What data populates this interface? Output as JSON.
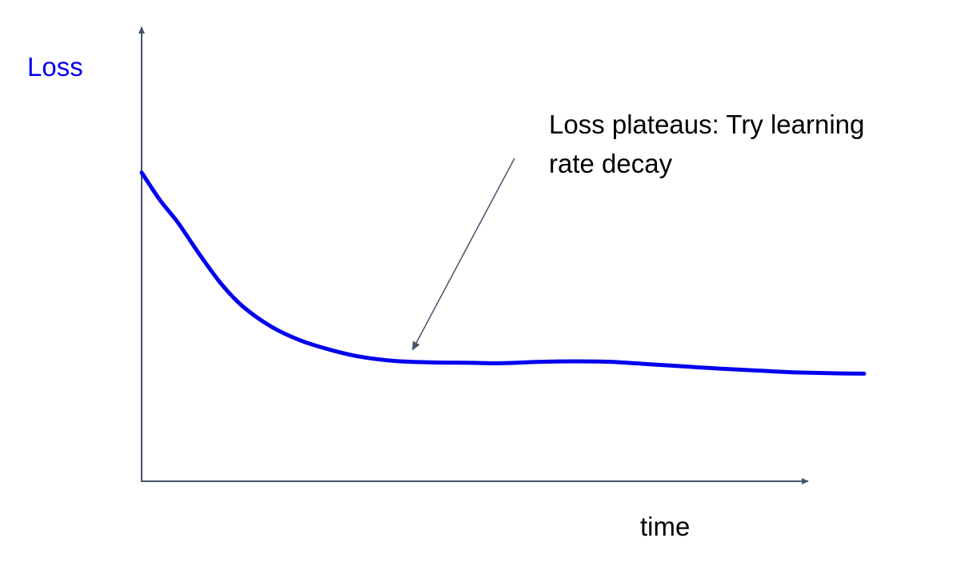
{
  "chart_data": {
    "type": "line",
    "title": "",
    "xlabel": "time",
    "ylabel": "Loss",
    "xlim": [
      0,
      100
    ],
    "ylim": [
      0,
      100
    ],
    "grid": false,
    "legend": "none",
    "series": [
      {
        "name": "loss",
        "color": "#0000ee",
        "x": [
          0,
          2.5,
          5,
          8,
          11,
          14,
          18,
          22,
          26,
          30,
          35,
          40,
          45,
          50,
          55,
          60,
          65,
          70,
          75,
          80,
          85,
          90,
          95,
          100
        ],
        "y": [
          68,
          62,
          57,
          50,
          43.5,
          38.5,
          34,
          31,
          29,
          27.5,
          26.5,
          26.2,
          26.1,
          26.0,
          26.3,
          26.4,
          26.3,
          25.8,
          25.3,
          24.8,
          24.4,
          24.0,
          23.8,
          23.7
        ]
      }
    ],
    "annotations": [
      {
        "lines": [
          "Loss plateaus: Try learning",
          "rate decay"
        ],
        "arrow_target_x": 37.5,
        "arrow_target_y": 27
      }
    ],
    "colors": {
      "axis": "#44546a",
      "line": "#0000ee",
      "ylabel": "#0000ee",
      "arrow": "#44546a"
    }
  }
}
